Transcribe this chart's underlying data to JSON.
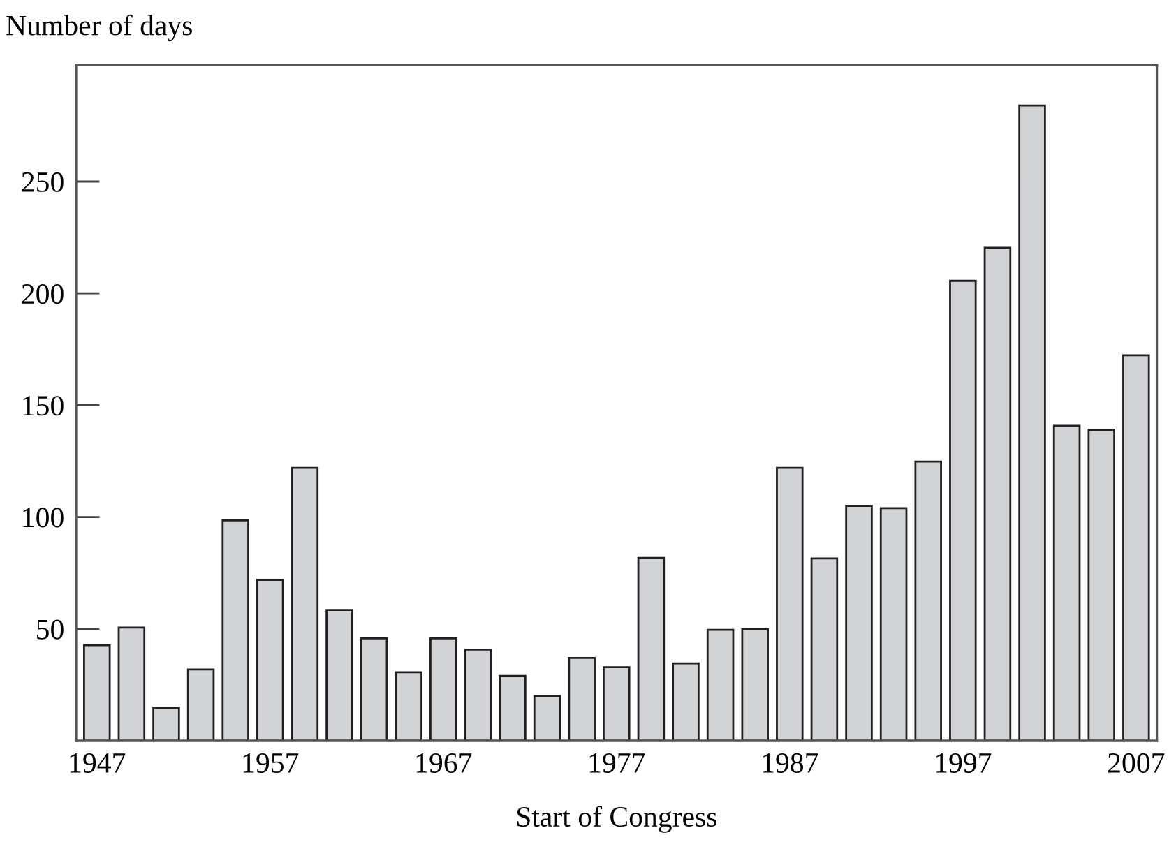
{
  "chart_data": {
    "type": "bar",
    "xlabel": "Start of Congress",
    "ylabel": "Number of days",
    "x": [
      1947,
      1949,
      1951,
      1953,
      1955,
      1957,
      1959,
      1961,
      1963,
      1965,
      1967,
      1969,
      1971,
      1973,
      1975,
      1977,
      1979,
      1981,
      1983,
      1985,
      1987,
      1989,
      1991,
      1993,
      1995,
      1997,
      1999,
      2001,
      2003,
      2005,
      2007
    ],
    "values": [
      42.7,
      50.6,
      14.8,
      31.9,
      98.5,
      71.9,
      122,
      58.5,
      45.8,
      30.6,
      45.8,
      40.8,
      29,
      20,
      37,
      32.9,
      81.7,
      34.6,
      49.6,
      49.8,
      122,
      81.5,
      105,
      104,
      124.8,
      205.6,
      220.4,
      284,
      140.8,
      139,
      172.3
    ],
    "color": "#d1d3d4",
    "xlim": [
      1945.8,
      2008.2
    ],
    "xticks": [
      1947,
      1957,
      1967,
      1977,
      1987,
      1997,
      2007
    ],
    "ylim": [
      0,
      302
    ],
    "yticks": [
      50,
      100,
      150,
      200,
      250
    ],
    "grid": false
  }
}
